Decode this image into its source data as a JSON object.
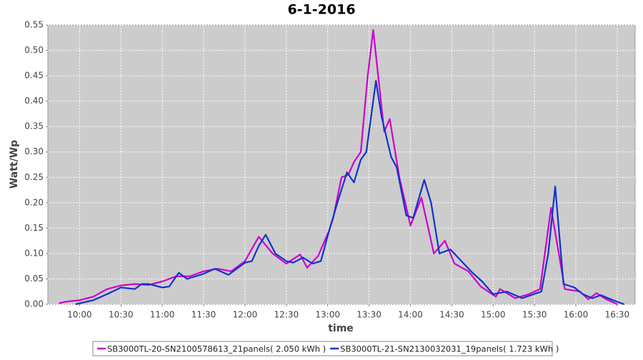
{
  "chart_data": {
    "type": "line",
    "title": "6-1-2016",
    "x_label": "time",
    "y_label": "Watt/Wp",
    "xlim": [
      "09:37",
      "16:43"
    ],
    "xticks": [
      "10:00",
      "10:30",
      "11:00",
      "11:30",
      "12:00",
      "12:30",
      "13:00",
      "13:30",
      "14:00",
      "14:30",
      "15:00",
      "15:30",
      "16:00",
      "16:30"
    ],
    "ylim": [
      0,
      0.55
    ],
    "yticks": [
      {
        "value": 0,
        "label": "0.00"
      },
      0.05,
      {
        "value": 0.1,
        "label": "0.10"
      },
      0.15,
      {
        "value": 0.2,
        "label": "0.20"
      },
      0.25,
      {
        "value": 0.3,
        "label": "0.30"
      },
      0.35,
      {
        "value": 0.4,
        "label": "0.40"
      },
      0.45,
      {
        "value": 0.5,
        "label": "0.50"
      },
      0.55
    ],
    "grid": true,
    "background": "#cccccc",
    "legend": "bottom",
    "series": [
      {
        "name": "SB3000TL-20-SN2100578613_21panels( 2.050 kWh )",
        "color": "#cc00cc",
        "x": [
          "09:45",
          "09:50",
          "10:00",
          "10:10",
          "10:20",
          "10:30",
          "10:40",
          "10:50",
          "11:00",
          "11:10",
          "11:20",
          "11:30",
          "11:40",
          "11:50",
          "12:00",
          "12:10",
          "12:20",
          "12:30",
          "12:40",
          "12:45",
          "12:53",
          "13:01",
          "13:04",
          "13:10",
          "13:15",
          "13:19",
          "13:24",
          "13:29",
          "13:33",
          "13:37",
          "13:41",
          "13:45",
          "13:52",
          "14:00",
          "14:08",
          "14:17",
          "14:25",
          "14:32",
          "14:42",
          "14:51",
          "15:02",
          "15:05",
          "15:16",
          "15:26",
          "15:34",
          "15:42",
          "15:52",
          "16:03",
          "16:09",
          "16:15",
          "16:22",
          "16:30"
        ],
        "values": [
          0.002,
          0.005,
          0.008,
          0.015,
          0.03,
          0.037,
          0.04,
          0.038,
          0.045,
          0.055,
          0.055,
          0.065,
          0.07,
          0.065,
          0.085,
          0.133,
          0.1,
          0.08,
          0.098,
          0.072,
          0.095,
          0.145,
          0.17,
          0.25,
          0.255,
          0.28,
          0.3,
          0.45,
          0.54,
          0.44,
          0.34,
          0.365,
          0.25,
          0.155,
          0.21,
          0.1,
          0.125,
          0.08,
          0.065,
          0.035,
          0.015,
          0.03,
          0.012,
          0.02,
          0.03,
          0.19,
          0.03,
          0.025,
          0.01,
          0.022,
          0.01,
          0.0
        ]
      },
      {
        "name": "SB3000TL-21-SN2130032031_19panels( 1.723 kWh )",
        "color": "#1133cc",
        "x": [
          "09:57",
          "10:10",
          "10:20",
          "10:30",
          "10:40",
          "10:45",
          "10:50",
          "11:00",
          "11:05",
          "11:12",
          "11:18",
          "11:30",
          "11:38",
          "11:48",
          "12:00",
          "12:05",
          "12:10",
          "12:15",
          "12:22",
          "12:30",
          "12:35",
          "12:42",
          "12:49",
          "12:55",
          "13:00",
          "13:07",
          "13:14",
          "13:19",
          "13:24",
          "13:28",
          "13:35",
          "13:39",
          "13:46",
          "13:50",
          "13:57",
          "14:02",
          "14:10",
          "14:15",
          "14:21",
          "14:29",
          "14:37",
          "14:45",
          "14:52",
          "15:00",
          "15:10",
          "15:21",
          "15:35",
          "15:40",
          "15:45",
          "15:51",
          "15:59",
          "16:05",
          "16:12",
          "16:18",
          "16:27",
          "16:35"
        ],
        "values": [
          0.0,
          0.008,
          0.02,
          0.033,
          0.03,
          0.04,
          0.04,
          0.033,
          0.035,
          0.062,
          0.05,
          0.06,
          0.07,
          0.058,
          0.082,
          0.085,
          0.115,
          0.137,
          0.1,
          0.085,
          0.082,
          0.092,
          0.08,
          0.085,
          0.135,
          0.2,
          0.26,
          0.24,
          0.285,
          0.3,
          0.44,
          0.37,
          0.29,
          0.27,
          0.175,
          0.17,
          0.245,
          0.2,
          0.1,
          0.108,
          0.085,
          0.062,
          0.045,
          0.02,
          0.025,
          0.012,
          0.025,
          0.1,
          0.232,
          0.04,
          0.033,
          0.02,
          0.012,
          0.018,
          0.008,
          0.0
        ]
      }
    ]
  }
}
